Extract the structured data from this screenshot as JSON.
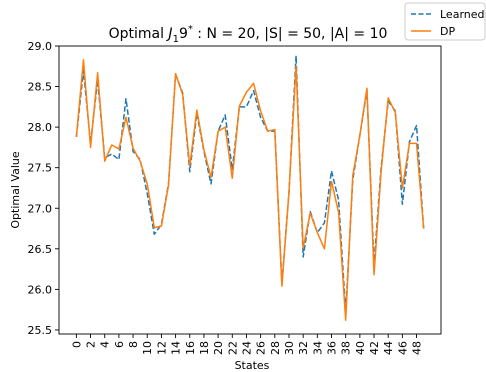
{
  "chart_data": {
    "type": "line",
    "title": "Optimal J₁9* : N = 20, |S| = 50, |A| = 10",
    "title_parts": {
      "pre": "Optimal ",
      "j": "J",
      "sub": "1",
      "nine": "9",
      "star": "*",
      "post": " : N = 20, |S| = 50, |A| = 10"
    },
    "xlabel": "States",
    "ylabel": "Optimal Value",
    "xlim": [
      -2.45,
      51.45
    ],
    "ylim": [
      25.45,
      29.0
    ],
    "xticks": [
      0,
      2,
      4,
      6,
      8,
      10,
      12,
      14,
      16,
      18,
      20,
      22,
      24,
      26,
      28,
      30,
      32,
      34,
      36,
      38,
      40,
      42,
      44,
      46,
      48
    ],
    "xtick_labels": [
      "0",
      "2",
      "4",
      "6",
      "8",
      "10",
      "12",
      "14",
      "16",
      "18",
      "20",
      "22",
      "24",
      "26",
      "28",
      "30",
      "32",
      "34",
      "36",
      "38",
      "40",
      "42",
      "44",
      "46",
      "48"
    ],
    "yticks": [
      25.5,
      26.0,
      26.5,
      27.0,
      27.5,
      28.0,
      28.5,
      29.0
    ],
    "ytick_labels": [
      "25.5",
      "26.0",
      "26.5",
      "27.0",
      "27.5",
      "28.0",
      "28.5",
      "29.0"
    ],
    "legend": "outside-top-right",
    "grid": false,
    "series": [
      {
        "name": "Learned",
        "color": "#1f77b4",
        "style": "dashed",
        "x": [
          0,
          1,
          2,
          3,
          4,
          5,
          6,
          7,
          8,
          9,
          10,
          11,
          12,
          13,
          14,
          15,
          16,
          17,
          18,
          19,
          20,
          21,
          22,
          23,
          24,
          25,
          26,
          27,
          28,
          29,
          30,
          31,
          32,
          33,
          34,
          35,
          36,
          37,
          38,
          39,
          40,
          41,
          42,
          43,
          44,
          45,
          46,
          47,
          48,
          49
        ],
        "values": [
          27.88,
          28.7,
          27.8,
          28.58,
          27.62,
          27.67,
          27.6,
          28.35,
          27.7,
          27.6,
          27.18,
          26.68,
          26.8,
          27.3,
          28.65,
          28.42,
          27.45,
          28.17,
          27.7,
          27.3,
          27.95,
          28.15,
          27.48,
          28.25,
          28.25,
          28.45,
          28.12,
          27.95,
          27.95,
          26.07,
          27.2,
          28.88,
          26.4,
          26.96,
          26.7,
          26.82,
          27.46,
          27.1,
          25.72,
          27.35,
          27.9,
          28.45,
          26.3,
          27.5,
          28.32,
          28.2,
          27.05,
          27.82,
          28.02,
          26.75
        ]
      },
      {
        "name": "DP",
        "color": "#ff7f0e",
        "style": "solid",
        "x": [
          0,
          1,
          2,
          3,
          4,
          5,
          6,
          7,
          8,
          9,
          10,
          11,
          12,
          13,
          14,
          15,
          16,
          17,
          18,
          19,
          20,
          21,
          22,
          23,
          24,
          25,
          26,
          27,
          28,
          29,
          30,
          31,
          32,
          33,
          34,
          35,
          36,
          37,
          38,
          39,
          40,
          41,
          42,
          43,
          44,
          45,
          46,
          47,
          48,
          49
        ],
        "values": [
          27.88,
          28.83,
          27.75,
          28.67,
          27.58,
          27.78,
          27.73,
          28.12,
          27.74,
          27.58,
          27.3,
          26.76,
          26.78,
          27.28,
          28.66,
          28.4,
          27.52,
          28.21,
          27.72,
          27.38,
          27.95,
          28.0,
          27.37,
          28.26,
          28.43,
          28.54,
          28.2,
          27.95,
          27.97,
          26.04,
          27.2,
          28.75,
          26.51,
          26.94,
          26.7,
          26.5,
          27.33,
          26.95,
          25.62,
          27.4,
          27.9,
          28.48,
          26.18,
          27.45,
          28.36,
          28.18,
          27.25,
          27.8,
          27.8,
          26.75
        ]
      }
    ]
  }
}
